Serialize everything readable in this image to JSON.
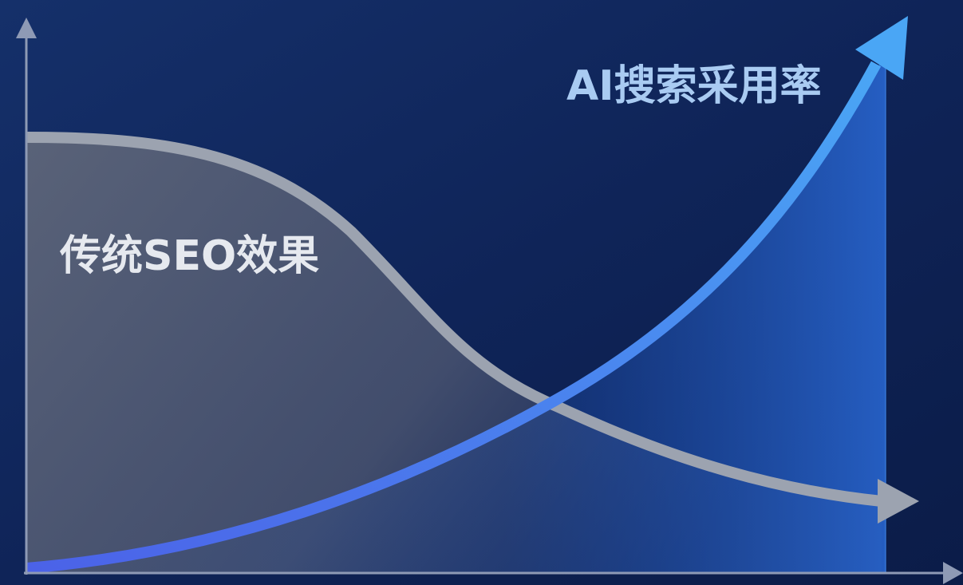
{
  "labels": {
    "ai_adoption": "AI搜索采用率",
    "traditional_seo": "传统SEO效果"
  }
}
